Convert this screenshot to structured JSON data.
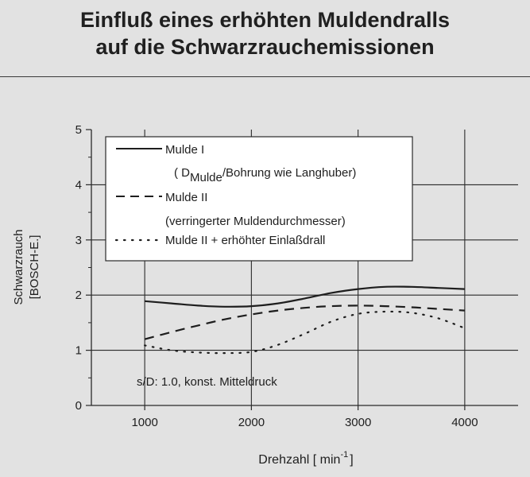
{
  "title": {
    "line1": "Einfluß eines erhöhten Muldendralls",
    "line2": "auf die Schwarzrauchemissionen"
  },
  "chart_data": {
    "type": "line",
    "xlabel": "Drehzahl [ min",
    "xlabel_sup": "-1",
    "xlabel_end": "]",
    "ylabel_line1": "Schwarzrauch",
    "ylabel_line2": "[BOSCH-E.]",
    "xlim": [
      500,
      4500
    ],
    "ylim": [
      0,
      5
    ],
    "x_ticks": [
      "1000",
      "2000",
      "3000",
      "4000"
    ],
    "x_tick_values": [
      1000,
      2000,
      3000,
      4000
    ],
    "y_ticks": [
      "0",
      "1",
      "2",
      "3",
      "4",
      "5"
    ],
    "y_tick_values": [
      0,
      1,
      2,
      3,
      4,
      5
    ],
    "grid": true,
    "legend_position": "top-left",
    "annotation": "s/D: 1.0, konst. Mitteldruck",
    "series": [
      {
        "name": "Mulde I",
        "note": "( D",
        "note_sub": "Mulde",
        "note_end": "/Bohrung wie Langhuber)",
        "style": "solid",
        "x": [
          1000,
          1250,
          1500,
          1750,
          2000,
          2250,
          2500,
          2750,
          3000,
          3250,
          3500,
          3750,
          4000
        ],
        "y": [
          1.89,
          1.85,
          1.81,
          1.79,
          1.8,
          1.85,
          1.94,
          2.04,
          2.11,
          2.15,
          2.15,
          2.13,
          2.11
        ]
      },
      {
        "name": "Mulde II",
        "note": "(verringerter Muldendurchmesser)",
        "style": "dashed",
        "x": [
          1000,
          1250,
          1500,
          1750,
          2000,
          2250,
          2500,
          2750,
          3000,
          3250,
          3500,
          3750,
          4000
        ],
        "y": [
          1.2,
          1.33,
          1.45,
          1.56,
          1.65,
          1.72,
          1.77,
          1.8,
          1.81,
          1.8,
          1.78,
          1.75,
          1.72
        ]
      },
      {
        "name": "Mulde II + erhöhter Einlaßdrall",
        "style": "dotted",
        "x": [
          1000,
          1250,
          1500,
          1750,
          2000,
          2250,
          2500,
          2750,
          3000,
          3250,
          3500,
          3750,
          4000
        ],
        "y": [
          1.09,
          1.0,
          0.96,
          0.95,
          0.97,
          1.1,
          1.3,
          1.52,
          1.66,
          1.7,
          1.68,
          1.58,
          1.4
        ]
      }
    ]
  },
  "colors": {
    "background": "#e2e2e2",
    "ink": "#1e1e1e",
    "grid": "#2a2a2a",
    "legend_bg": "#ffffff"
  }
}
